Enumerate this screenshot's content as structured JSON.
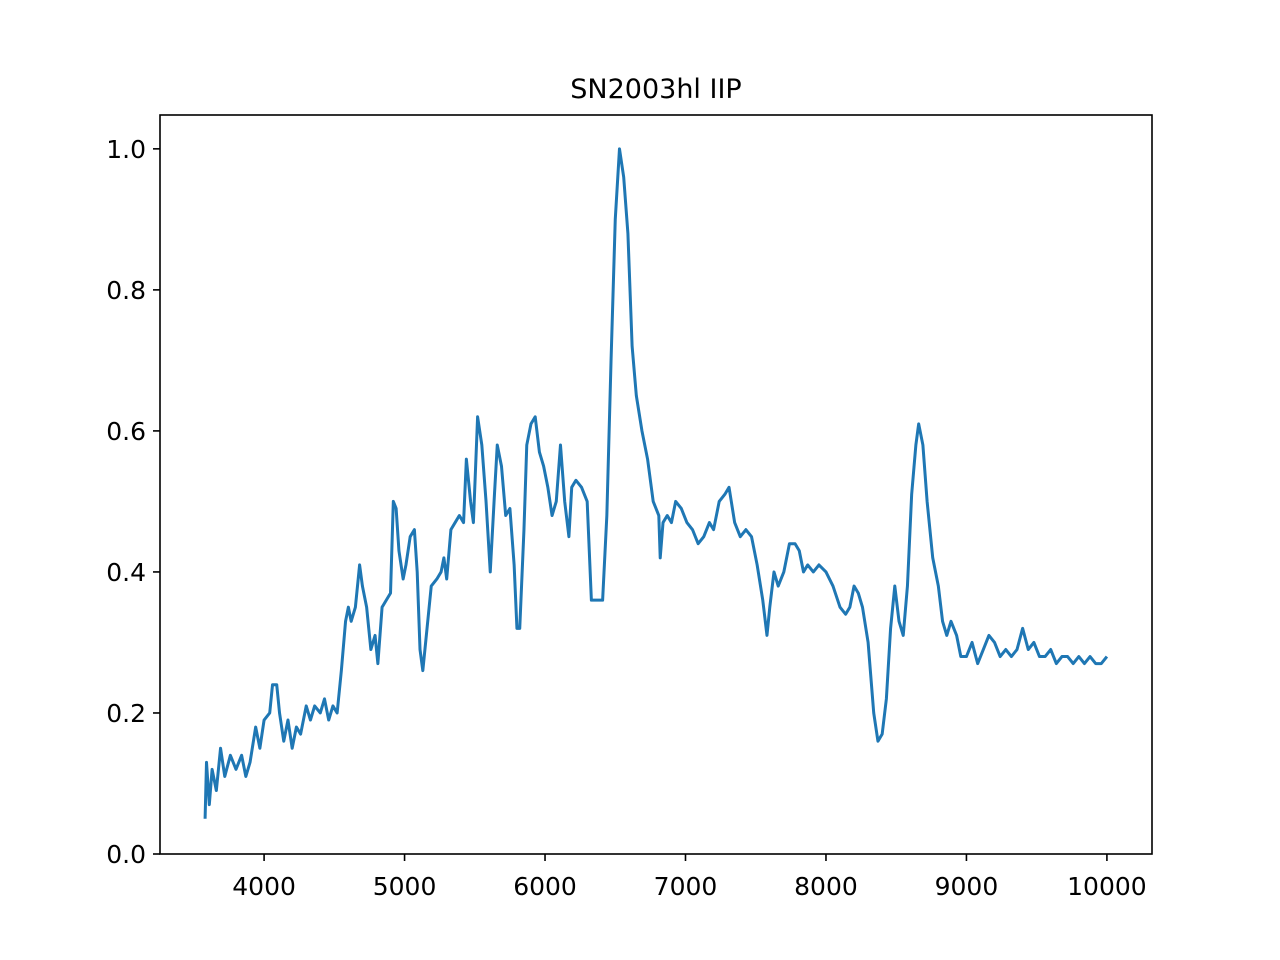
{
  "chart_data": {
    "type": "line",
    "title": "SN2003hl IIP",
    "x": [
      3580,
      3590,
      3610,
      3630,
      3660,
      3690,
      3720,
      3760,
      3800,
      3840,
      3870,
      3900,
      3940,
      3970,
      4000,
      4040,
      4060,
      4090,
      4110,
      4140,
      4170,
      4200,
      4230,
      4260,
      4300,
      4330,
      4360,
      4400,
      4430,
      4460,
      4490,
      4520,
      4550,
      4580,
      4600,
      4620,
      4650,
      4680,
      4700,
      4730,
      4760,
      4790,
      4810,
      4840,
      4870,
      4900,
      4920,
      4940,
      4960,
      4990,
      5010,
      5040,
      5070,
      5090,
      5110,
      5130,
      5150,
      5170,
      5190,
      5230,
      5260,
      5280,
      5300,
      5330,
      5360,
      5390,
      5420,
      5440,
      5470,
      5490,
      5520,
      5550,
      5580,
      5610,
      5640,
      5660,
      5690,
      5720,
      5750,
      5780,
      5800,
      5820,
      5850,
      5870,
      5900,
      5930,
      5960,
      5990,
      6020,
      6050,
      6080,
      6110,
      6140,
      6170,
      6190,
      6220,
      6260,
      6300,
      6330,
      6370,
      6410,
      6440,
      6470,
      6500,
      6530,
      6560,
      6590,
      6620,
      6650,
      6690,
      6730,
      6770,
      6810,
      6820,
      6840,
      6870,
      6900,
      6930,
      6970,
      7010,
      7050,
      7090,
      7130,
      7170,
      7200,
      7240,
      7280,
      7310,
      7350,
      7390,
      7430,
      7470,
      7510,
      7550,
      7580,
      7600,
      7630,
      7660,
      7700,
      7740,
      7780,
      7810,
      7840,
      7870,
      7910,
      7950,
      8000,
      8050,
      8100,
      8140,
      8170,
      8200,
      8230,
      8260,
      8300,
      8340,
      8370,
      8400,
      8430,
      8460,
      8490,
      8520,
      8550,
      8580,
      8610,
      8640,
      8660,
      8690,
      8720,
      8760,
      8800,
      8830,
      8860,
      8890,
      8930,
      8960,
      9000,
      9040,
      9080,
      9120,
      9160,
      9200,
      9240,
      9280,
      9320,
      9360,
      9400,
      9440,
      9480,
      9520,
      9560,
      9600,
      9640,
      9680,
      9720,
      9760,
      9800,
      9840,
      9880,
      9920,
      9960,
      10000
    ],
    "series": [
      {
        "color": "#1f77b4",
        "values": [
          0.05,
          0.13,
          0.07,
          0.12,
          0.09,
          0.15,
          0.11,
          0.14,
          0.12,
          0.14,
          0.11,
          0.13,
          0.18,
          0.15,
          0.19,
          0.2,
          0.24,
          0.24,
          0.2,
          0.16,
          0.19,
          0.15,
          0.18,
          0.17,
          0.21,
          0.19,
          0.21,
          0.2,
          0.22,
          0.19,
          0.21,
          0.2,
          0.26,
          0.33,
          0.35,
          0.33,
          0.35,
          0.41,
          0.38,
          0.35,
          0.29,
          0.31,
          0.27,
          0.35,
          0.36,
          0.37,
          0.5,
          0.49,
          0.43,
          0.39,
          0.41,
          0.45,
          0.46,
          0.4,
          0.29,
          0.26,
          0.3,
          0.34,
          0.38,
          0.39,
          0.4,
          0.42,
          0.39,
          0.46,
          0.47,
          0.48,
          0.47,
          0.56,
          0.5,
          0.47,
          0.62,
          0.58,
          0.5,
          0.4,
          0.51,
          0.58,
          0.55,
          0.48,
          0.49,
          0.41,
          0.32,
          0.32,
          0.46,
          0.58,
          0.61,
          0.62,
          0.57,
          0.55,
          0.52,
          0.48,
          0.5,
          0.58,
          0.5,
          0.45,
          0.52,
          0.53,
          0.52,
          0.5,
          0.36,
          0.36,
          0.36,
          0.48,
          0.7,
          0.9,
          1.0,
          0.96,
          0.88,
          0.72,
          0.65,
          0.6,
          0.56,
          0.5,
          0.48,
          0.42,
          0.47,
          0.48,
          0.47,
          0.5,
          0.49,
          0.47,
          0.46,
          0.44,
          0.45,
          0.47,
          0.46,
          0.5,
          0.51,
          0.52,
          0.47,
          0.45,
          0.46,
          0.45,
          0.41,
          0.36,
          0.31,
          0.35,
          0.4,
          0.38,
          0.4,
          0.44,
          0.44,
          0.43,
          0.4,
          0.41,
          0.4,
          0.41,
          0.4,
          0.38,
          0.35,
          0.34,
          0.35,
          0.38,
          0.37,
          0.35,
          0.3,
          0.2,
          0.16,
          0.17,
          0.22,
          0.32,
          0.38,
          0.33,
          0.31,
          0.38,
          0.51,
          0.58,
          0.61,
          0.58,
          0.5,
          0.42,
          0.38,
          0.33,
          0.31,
          0.33,
          0.31,
          0.28,
          0.28,
          0.3,
          0.27,
          0.29,
          0.31,
          0.3,
          0.28,
          0.29,
          0.28,
          0.29,
          0.32,
          0.29,
          0.3,
          0.28,
          0.28,
          0.29,
          0.27,
          0.28,
          0.28,
          0.27,
          0.28,
          0.27,
          0.28,
          0.27,
          0.27,
          0.28
        ]
      }
    ],
    "xlim": [
      3259,
      10321
    ],
    "xticks": [
      4000,
      5000,
      6000,
      7000,
      8000,
      9000,
      10000
    ],
    "ylim": [
      0,
      1.048
    ],
    "yticks": [
      {
        "value": 0,
        "label": "0.0"
      },
      {
        "value": 0.2,
        "label": "0.2"
      },
      {
        "value": 0.4,
        "label": "0.4"
      },
      {
        "value": 0.6,
        "label": "0.6"
      },
      {
        "value": 0.8,
        "label": "0.8"
      },
      {
        "value": 1,
        "label": "1.0"
      }
    ]
  }
}
